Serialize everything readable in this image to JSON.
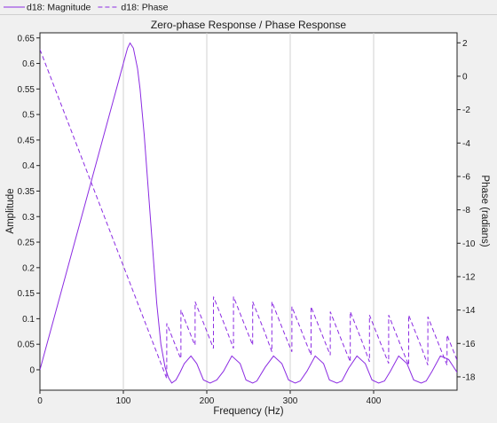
{
  "chart_data": {
    "type": "line",
    "title": "Zero-phase Response / Phase Response",
    "xlabel": "Frequency (Hz)",
    "ylabel": "Amplitude",
    "y2label": "Phase (radians)",
    "xlim": [
      0,
      500
    ],
    "ylim": [
      -0.04,
      0.66
    ],
    "y2lim": [
      -18.8,
      2.6
    ],
    "xticks": [
      0,
      100,
      200,
      300,
      400
    ],
    "yticks": [
      0,
      0.05,
      0.1,
      0.15,
      0.2,
      0.25,
      0.3,
      0.35,
      0.4,
      0.45,
      0.5,
      0.55,
      0.6,
      0.65
    ],
    "y2ticks": [
      -18,
      -16,
      -14,
      -12,
      -10,
      -8,
      -6,
      -4,
      -2,
      0,
      2
    ],
    "vgrid_x": [
      100,
      200,
      300,
      400
    ],
    "legend_position": "top-left",
    "series": [
      {
        "name": "d18: Magnitude",
        "axis": "left",
        "color": "#8b2be2",
        "dash": "solid",
        "x": [
          0,
          10,
          20,
          30,
          40,
          50,
          60,
          70,
          80,
          90,
          95,
          100,
          105,
          108,
          112,
          117,
          120,
          125,
          130,
          135,
          140,
          145,
          150,
          154,
          158,
          163,
          168,
          173,
          181,
          188,
          196,
          204,
          212,
          220,
          230,
          240,
          247,
          255,
          260,
          270,
          280,
          290,
          298,
          306,
          312,
          320,
          330,
          340,
          347,
          356,
          362,
          370,
          380,
          390,
          398,
          406,
          413,
          420,
          430,
          440,
          448,
          457,
          463,
          470,
          480,
          490,
          500
        ],
        "y": [
          0,
          0.06,
          0.12,
          0.18,
          0.24,
          0.3,
          0.36,
          0.42,
          0.48,
          0.54,
          0.57,
          0.6,
          0.63,
          0.64,
          0.63,
          0.59,
          0.55,
          0.46,
          0.35,
          0.24,
          0.13,
          0.05,
          0.005,
          -0.015,
          -0.026,
          -0.02,
          -0.005,
          0.012,
          0.027,
          0.012,
          -0.02,
          -0.026,
          -0.02,
          -0.003,
          0.027,
          0.012,
          -0.02,
          -0.026,
          -0.022,
          0.005,
          0.027,
          0.012,
          -0.02,
          -0.026,
          -0.022,
          -0.003,
          0.027,
          0.012,
          -0.02,
          -0.026,
          -0.022,
          0.003,
          0.027,
          0.012,
          -0.02,
          -0.026,
          -0.022,
          -0.003,
          0.027,
          0.012,
          -0.02,
          -0.026,
          -0.022,
          -0.003,
          0.027,
          0.02,
          -0.005
        ]
      },
      {
        "name": "d18: Phase",
        "axis": "right",
        "color": "#8b2be2",
        "dash": "dashed",
        "x": [
          0,
          152,
          152.01,
          167,
          169,
          169.01,
          184,
          186,
          186.01,
          201,
          208,
          208.01,
          223,
          232,
          232.01,
          247,
          255,
          255.01,
          270,
          278,
          278.01,
          293,
          302,
          302.01,
          317,
          325,
          325.01,
          340,
          348,
          348.01,
          363,
          372,
          372.01,
          387,
          395,
          395.01,
          410,
          418,
          418.01,
          433,
          442,
          442.01,
          457,
          465,
          465.01,
          480,
          488,
          488.01,
          500
        ],
        "y": [
          1.6,
          -18.1,
          -14.8,
          -16.7,
          -16.9,
          -14.0,
          -15.9,
          -16.1,
          -13.5,
          -15.4,
          -16.3,
          -13.2,
          -15.1,
          -16.3,
          -13.2,
          -15.1,
          -16.1,
          -13.5,
          -15.4,
          -16.5,
          -13.5,
          -15.4,
          -16.5,
          -13.8,
          -15.7,
          -16.7,
          -13.8,
          -15.7,
          -16.7,
          -14.1,
          -16.0,
          -17.1,
          -14.1,
          -16.0,
          -17.1,
          -14.3,
          -16.2,
          -17.2,
          -14.3,
          -16.2,
          -17.3,
          -14.3,
          -16.2,
          -17.3,
          -14.4,
          -16.3,
          -17.3,
          -15.5,
          -17.0
        ]
      }
    ]
  }
}
